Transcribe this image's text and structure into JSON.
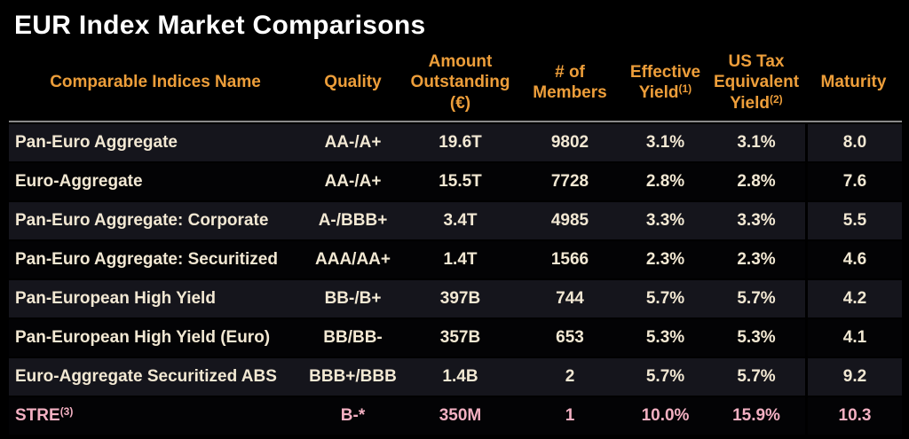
{
  "title": "EUR Index Market Comparisons",
  "colors": {
    "background": "#000000",
    "title_text": "#ffffff",
    "header_text": "#ED9E3A",
    "row_text": "#F2E8D3",
    "highlight_row_text": "#F3B0C2",
    "row_stripe": "#15151C",
    "header_rule": "#8a8a8a"
  },
  "table": {
    "columns": [
      {
        "label": "Comparable Indices Name",
        "sup": ""
      },
      {
        "label": "Quality",
        "sup": ""
      },
      {
        "label": "Amount\nOutstanding\n(€)",
        "sup": ""
      },
      {
        "label": "# of\nMembers",
        "sup": ""
      },
      {
        "label": "Effective\nYield",
        "sup": "(1)"
      },
      {
        "label": "US Tax\nEquivalent\nYield",
        "sup": "(2)"
      },
      {
        "label": "Maturity",
        "sup": ""
      }
    ],
    "rows": [
      {
        "name": "Pan-Euro Aggregate",
        "name_sup": "",
        "quality": "AA-/A+",
        "amount": "19.6T",
        "members": "9802",
        "effective_yield": "3.1%",
        "us_tax_equivalent_yield": "3.1%",
        "maturity": "8.0",
        "highlighted": false
      },
      {
        "name": "Euro-Aggregate",
        "name_sup": "",
        "quality": "AA-/A+",
        "amount": "15.5T",
        "members": "7728",
        "effective_yield": "2.8%",
        "us_tax_equivalent_yield": "2.8%",
        "maturity": "7.6",
        "highlighted": false
      },
      {
        "name": "Pan-Euro Aggregate: Corporate",
        "name_sup": "",
        "quality": "A-/BBB+",
        "amount": "3.4T",
        "members": "4985",
        "effective_yield": "3.3%",
        "us_tax_equivalent_yield": "3.3%",
        "maturity": "5.5",
        "highlighted": false
      },
      {
        "name": "Pan-Euro Aggregate: Securitized",
        "name_sup": "",
        "quality": "AAA/AA+",
        "amount": "1.4T",
        "members": "1566",
        "effective_yield": "2.3%",
        "us_tax_equivalent_yield": "2.3%",
        "maturity": "4.6",
        "highlighted": false
      },
      {
        "name": "Pan-European High Yield",
        "name_sup": "",
        "quality": "BB-/B+",
        "amount": "397B",
        "members": "744",
        "effective_yield": "5.7%",
        "us_tax_equivalent_yield": "5.7%",
        "maturity": "4.2",
        "highlighted": false
      },
      {
        "name": "Pan-European High Yield (Euro)",
        "name_sup": "",
        "quality": "BB/BB-",
        "amount": "357B",
        "members": "653",
        "effective_yield": "5.3%",
        "us_tax_equivalent_yield": "5.3%",
        "maturity": "4.1",
        "highlighted": false
      },
      {
        "name": "Euro-Aggregate Securitized ABS",
        "name_sup": "",
        "quality": "BBB+/BBB",
        "amount": "1.4B",
        "members": "2",
        "effective_yield": "5.7%",
        "us_tax_equivalent_yield": "5.7%",
        "maturity": "9.2",
        "highlighted": false
      },
      {
        "name": "STRE",
        "name_sup": "(3)",
        "quality": "B-*",
        "amount": "350M",
        "members": "1",
        "effective_yield": "10.0%",
        "us_tax_equivalent_yield": "15.9%",
        "maturity": "10.3",
        "highlighted": true
      }
    ]
  }
}
